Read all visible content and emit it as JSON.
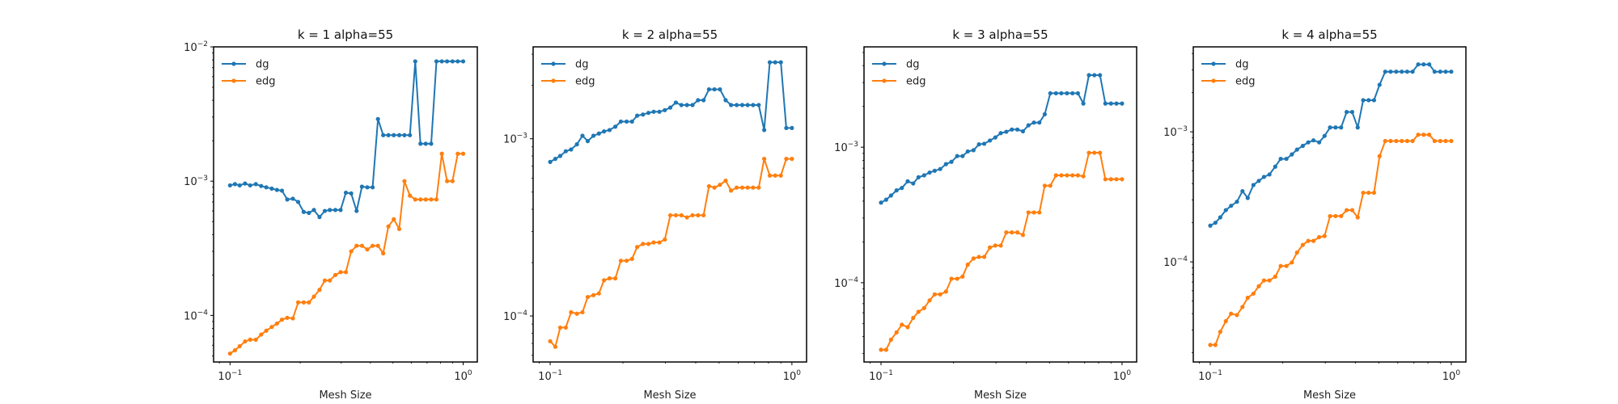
{
  "colors": {
    "dg": "#1f77b4",
    "edg": "#ff7f0e",
    "axes": "#000000",
    "background": "#ffffff"
  },
  "chart_data": [
    {
      "type": "line",
      "title": "k = 1 alpha=55",
      "xlabel": "Mesh Size",
      "ylabel": "",
      "xscale": "log",
      "yscale": "log",
      "xlim": [
        0.085,
        1.15
      ],
      "ylim": [
        4.5e-05,
        0.01
      ],
      "xticks": [
        {
          "value": 0.1,
          "base": "10",
          "exp": "−1"
        },
        {
          "value": 1,
          "base": "10",
          "exp": "0"
        }
      ],
      "yticks": [
        {
          "value": 0.0001,
          "base": "10",
          "exp": "−4"
        },
        {
          "value": 0.001,
          "base": "10",
          "exp": "−3"
        },
        {
          "value": 0.01,
          "base": "10",
          "exp": "−2"
        }
      ],
      "grid": false,
      "legend": "top-left",
      "series": [
        {
          "name": "dg",
          "color": "#1f77b4",
          "x": [
            0.1,
            0.105,
            0.11,
            0.116,
            0.122,
            0.129,
            0.136,
            0.143,
            0.151,
            0.159,
            0.167,
            0.176,
            0.186,
            0.196,
            0.207,
            0.218,
            0.229,
            0.242,
            0.255,
            0.268,
            0.283,
            0.298,
            0.314,
            0.331,
            0.349,
            0.368,
            0.388,
            0.409,
            0.431,
            0.454,
            0.478,
            0.504,
            0.532,
            0.56,
            0.591,
            0.623,
            0.656,
            0.691,
            0.729,
            0.768,
            0.81,
            0.853,
            0.9,
            0.948,
            1.0
          ],
          "y": [
            0.00093,
            0.00095,
            0.00093,
            0.00096,
            0.00093,
            0.00095,
            0.00092,
            0.0009,
            0.00088,
            0.00086,
            0.00085,
            0.00073,
            0.00074,
            0.0007,
            0.00059,
            0.00058,
            0.00061,
            0.00054,
            0.0006,
            0.00061,
            0.00061,
            0.00061,
            0.00082,
            0.00081,
            0.0006,
            0.00091,
            0.0009,
            0.0009,
            0.0029,
            0.0022,
            0.0022,
            0.0022,
            0.0022,
            0.0022,
            0.0022,
            0.0078,
            0.0019,
            0.0019,
            0.0019,
            0.0078,
            0.0078,
            0.0078,
            0.0078,
            0.0078,
            0.0078
          ]
        },
        {
          "name": "edg",
          "color": "#ff7f0e",
          "x": [
            0.1,
            0.105,
            0.11,
            0.116,
            0.122,
            0.129,
            0.136,
            0.143,
            0.151,
            0.159,
            0.167,
            0.176,
            0.186,
            0.196,
            0.207,
            0.218,
            0.229,
            0.242,
            0.255,
            0.268,
            0.283,
            0.298,
            0.314,
            0.331,
            0.349,
            0.368,
            0.388,
            0.409,
            0.431,
            0.454,
            0.478,
            0.504,
            0.532,
            0.56,
            0.591,
            0.623,
            0.656,
            0.691,
            0.729,
            0.768,
            0.81,
            0.853,
            0.9,
            0.948,
            1.0
          ],
          "y": [
            5.2e-05,
            5.5e-05,
            5.9e-05,
            6.4e-05,
            6.6e-05,
            6.6e-05,
            7.2e-05,
            7.7e-05,
            8.2e-05,
            8.7e-05,
            9.3e-05,
            9.6e-05,
            9.5e-05,
            0.000125,
            0.000125,
            0.000125,
            0.000138,
            0.000155,
            0.000182,
            0.000182,
            0.0002,
            0.00021,
            0.00021,
            0.0003,
            0.00033,
            0.00033,
            0.00031,
            0.00033,
            0.00033,
            0.00029,
            0.00046,
            0.00052,
            0.00044,
            0.001,
            0.00078,
            0.00073,
            0.00073,
            0.00073,
            0.00073,
            0.00073,
            0.0016,
            0.001,
            0.001,
            0.0016,
            0.0016
          ]
        }
      ]
    },
    {
      "type": "line",
      "title": "k = 2 alpha=55",
      "xlabel": "Mesh Size",
      "ylabel": "",
      "xscale": "log",
      "yscale": "log",
      "xlim": [
        0.085,
        1.15
      ],
      "ylim": [
        5.5e-05,
        0.0033
      ],
      "xticks": [
        {
          "value": 0.1,
          "base": "10",
          "exp": "−1"
        },
        {
          "value": 1,
          "base": "10",
          "exp": "0"
        }
      ],
      "yticks": [
        {
          "value": 0.0001,
          "base": "10",
          "exp": "−4"
        },
        {
          "value": 0.001,
          "base": "10",
          "exp": "−3"
        }
      ],
      "grid": false,
      "legend": "top-left",
      "series": [
        {
          "name": "dg",
          "color": "#1f77b4",
          "x": [
            0.1,
            0.105,
            0.11,
            0.116,
            0.122,
            0.129,
            0.136,
            0.143,
            0.151,
            0.159,
            0.167,
            0.176,
            0.186,
            0.196,
            0.207,
            0.218,
            0.229,
            0.242,
            0.255,
            0.268,
            0.283,
            0.298,
            0.314,
            0.331,
            0.349,
            0.368,
            0.388,
            0.409,
            0.431,
            0.454,
            0.478,
            0.504,
            0.532,
            0.56,
            0.591,
            0.623,
            0.656,
            0.691,
            0.729,
            0.768,
            0.81,
            0.853,
            0.9,
            0.948,
            1.0
          ],
          "y": [
            0.00074,
            0.00077,
            0.0008,
            0.00085,
            0.00087,
            0.00093,
            0.00104,
            0.00097,
            0.00104,
            0.00107,
            0.0011,
            0.00112,
            0.00117,
            0.00125,
            0.00125,
            0.00125,
            0.00135,
            0.00137,
            0.0014,
            0.00142,
            0.00142,
            0.00145,
            0.0015,
            0.0016,
            0.00155,
            0.00155,
            0.00155,
            0.00165,
            0.00165,
            0.0019,
            0.0019,
            0.0019,
            0.00165,
            0.00155,
            0.00155,
            0.00155,
            0.00155,
            0.00155,
            0.00155,
            0.00112,
            0.0027,
            0.0027,
            0.0027,
            0.00115,
            0.00115
          ]
        },
        {
          "name": "edg",
          "color": "#ff7f0e",
          "x": [
            0.1,
            0.105,
            0.11,
            0.116,
            0.122,
            0.129,
            0.136,
            0.143,
            0.151,
            0.159,
            0.167,
            0.176,
            0.186,
            0.196,
            0.207,
            0.218,
            0.229,
            0.242,
            0.255,
            0.268,
            0.283,
            0.298,
            0.314,
            0.331,
            0.349,
            0.368,
            0.388,
            0.409,
            0.431,
            0.454,
            0.478,
            0.504,
            0.532,
            0.56,
            0.591,
            0.623,
            0.656,
            0.691,
            0.729,
            0.768,
            0.81,
            0.853,
            0.9,
            0.948,
            1.0
          ],
          "y": [
            7.2e-05,
            6.7e-05,
            8.6e-05,
            8.6e-05,
            0.000105,
            0.000103,
            0.000105,
            0.000128,
            0.000131,
            0.000134,
            0.000159,
            0.000163,
            0.000163,
            0.000205,
            0.000205,
            0.00021,
            0.000245,
            0.000255,
            0.000255,
            0.00026,
            0.00026,
            0.00027,
            0.00037,
            0.00037,
            0.00037,
            0.00036,
            0.00037,
            0.00037,
            0.00037,
            0.00054,
            0.00053,
            0.00055,
            0.00058,
            0.00051,
            0.00053,
            0.00053,
            0.00053,
            0.00053,
            0.00053,
            0.00077,
            0.00062,
            0.00062,
            0.00062,
            0.00077,
            0.00077
          ]
        }
      ]
    },
    {
      "type": "line",
      "title": "k = 3 alpha=55",
      "xlabel": "Mesh Size",
      "ylabel": "",
      "xscale": "log",
      "yscale": "log",
      "xlim": [
        0.085,
        1.15
      ],
      "ylim": [
        2.6e-05,
        0.0055
      ],
      "xticks": [
        {
          "value": 0.1,
          "base": "10",
          "exp": "−1"
        },
        {
          "value": 1,
          "base": "10",
          "exp": "0"
        }
      ],
      "yticks": [
        {
          "value": 0.0001,
          "base": "10",
          "exp": "−4"
        },
        {
          "value": 0.001,
          "base": "10",
          "exp": "−3"
        }
      ],
      "grid": false,
      "legend": "top-left",
      "series": [
        {
          "name": "dg",
          "color": "#1f77b4",
          "x": [
            0.1,
            0.105,
            0.11,
            0.116,
            0.122,
            0.129,
            0.136,
            0.143,
            0.151,
            0.159,
            0.167,
            0.176,
            0.186,
            0.196,
            0.207,
            0.218,
            0.229,
            0.242,
            0.255,
            0.268,
            0.283,
            0.298,
            0.314,
            0.331,
            0.349,
            0.368,
            0.388,
            0.409,
            0.431,
            0.454,
            0.478,
            0.504,
            0.532,
            0.56,
            0.591,
            0.623,
            0.656,
            0.691,
            0.729,
            0.768,
            0.81,
            0.853,
            0.9,
            0.948,
            1.0
          ],
          "y": [
            0.00039,
            0.00041,
            0.00044,
            0.00048,
            0.0005,
            0.00056,
            0.00054,
            0.0006,
            0.00062,
            0.00065,
            0.00067,
            0.00069,
            0.00075,
            0.00078,
            0.00086,
            0.00086,
            0.00093,
            0.00095,
            0.00105,
            0.00106,
            0.00112,
            0.00118,
            0.00127,
            0.0013,
            0.00135,
            0.00135,
            0.00131,
            0.00145,
            0.00152,
            0.00152,
            0.00175,
            0.0025,
            0.0025,
            0.0025,
            0.0025,
            0.0025,
            0.0025,
            0.0021,
            0.0034,
            0.0034,
            0.0034,
            0.0021,
            0.0021,
            0.0021,
            0.0021
          ]
        },
        {
          "name": "edg",
          "color": "#ff7f0e",
          "x": [
            0.1,
            0.105,
            0.11,
            0.116,
            0.122,
            0.129,
            0.136,
            0.143,
            0.151,
            0.159,
            0.167,
            0.176,
            0.186,
            0.196,
            0.207,
            0.218,
            0.229,
            0.242,
            0.255,
            0.268,
            0.283,
            0.298,
            0.314,
            0.331,
            0.349,
            0.368,
            0.388,
            0.409,
            0.431,
            0.454,
            0.478,
            0.504,
            0.532,
            0.56,
            0.591,
            0.623,
            0.656,
            0.691,
            0.729,
            0.768,
            0.81,
            0.853,
            0.9,
            0.948,
            1.0
          ],
          "y": [
            3.2e-05,
            3.2e-05,
            3.8e-05,
            4.3e-05,
            4.9e-05,
            4.7e-05,
            5.5e-05,
            6.1e-05,
            6.5e-05,
            7.4e-05,
            8.2e-05,
            8.2e-05,
            8.6e-05,
            0.000107,
            0.000107,
            0.000111,
            0.000136,
            0.000151,
            0.000155,
            0.000155,
            0.000182,
            0.000188,
            0.000188,
            0.000235,
            0.000235,
            0.000235,
            0.000225,
            0.00033,
            0.00033,
            0.00033,
            0.00052,
            0.00052,
            0.00062,
            0.00062,
            0.00062,
            0.00062,
            0.00062,
            0.00061,
            0.00091,
            0.00091,
            0.00091,
            0.00058,
            0.00058,
            0.00058,
            0.00058
          ]
        }
      ]
    },
    {
      "type": "line",
      "title": "k = 4 alpha=55",
      "xlabel": "Mesh Size",
      "ylabel": "",
      "xscale": "log",
      "yscale": "log",
      "xlim": [
        0.085,
        1.15
      ],
      "ylim": [
        1.7e-05,
        0.0045
      ],
      "xticks": [
        {
          "value": 0.1,
          "base": "10",
          "exp": "−1"
        },
        {
          "value": 1,
          "base": "10",
          "exp": "0"
        }
      ],
      "yticks": [
        {
          "value": 0.0001,
          "base": "10",
          "exp": "−4"
        },
        {
          "value": 0.001,
          "base": "10",
          "exp": "−3"
        }
      ],
      "grid": false,
      "legend": "top-left",
      "series": [
        {
          "name": "dg",
          "color": "#1f77b4",
          "x": [
            0.1,
            0.105,
            0.11,
            0.116,
            0.122,
            0.129,
            0.136,
            0.143,
            0.151,
            0.159,
            0.167,
            0.176,
            0.186,
            0.196,
            0.207,
            0.218,
            0.229,
            0.242,
            0.255,
            0.268,
            0.283,
            0.298,
            0.314,
            0.331,
            0.349,
            0.368,
            0.388,
            0.409,
            0.431,
            0.454,
            0.478,
            0.504,
            0.532,
            0.56,
            0.591,
            0.623,
            0.656,
            0.691,
            0.729,
            0.768,
            0.81,
            0.853,
            0.9,
            0.948,
            1.0
          ],
          "y": [
            0.00019,
            0.0002,
            0.00022,
            0.00025,
            0.00027,
            0.00029,
            0.00035,
            0.00031,
            0.00039,
            0.00042,
            0.00045,
            0.00047,
            0.00054,
            0.00062,
            0.00062,
            0.00067,
            0.00073,
            0.00078,
            0.00083,
            0.00086,
            0.00083,
            0.00093,
            0.00108,
            0.00108,
            0.00108,
            0.00142,
            0.00142,
            0.00108,
            0.00175,
            0.00175,
            0.00175,
            0.0023,
            0.0029,
            0.0029,
            0.0029,
            0.0029,
            0.0029,
            0.0029,
            0.0033,
            0.0033,
            0.0033,
            0.0029,
            0.0029,
            0.0029,
            0.0029
          ]
        },
        {
          "name": "edg",
          "color": "#ff7f0e",
          "x": [
            0.1,
            0.105,
            0.11,
            0.116,
            0.122,
            0.129,
            0.136,
            0.143,
            0.151,
            0.159,
            0.167,
            0.176,
            0.186,
            0.196,
            0.207,
            0.218,
            0.229,
            0.242,
            0.255,
            0.268,
            0.283,
            0.298,
            0.314,
            0.331,
            0.349,
            0.368,
            0.388,
            0.409,
            0.431,
            0.454,
            0.478,
            0.504,
            0.532,
            0.56,
            0.591,
            0.623,
            0.656,
            0.691,
            0.729,
            0.768,
            0.81,
            0.853,
            0.9,
            0.948,
            1.0
          ],
          "y": [
            2.3e-05,
            2.3e-05,
            2.9e-05,
            3.5e-05,
            4e-05,
            3.9e-05,
            4.5e-05,
            5.3e-05,
            5.7e-05,
            6.5e-05,
            7.2e-05,
            7.2e-05,
            7.7e-05,
            9.3e-05,
            9.3e-05,
            9.9e-05,
            0.000118,
            0.000135,
            0.000145,
            0.000145,
            0.000155,
            0.000158,
            0.000225,
            0.000225,
            0.000225,
            0.00025,
            0.00025,
            0.00022,
            0.00034,
            0.00034,
            0.00034,
            0.00065,
            0.00085,
            0.00085,
            0.00085,
            0.00085,
            0.00085,
            0.00085,
            0.00095,
            0.00095,
            0.00095,
            0.00085,
            0.00085,
            0.00085,
            0.00085
          ]
        }
      ]
    }
  ]
}
